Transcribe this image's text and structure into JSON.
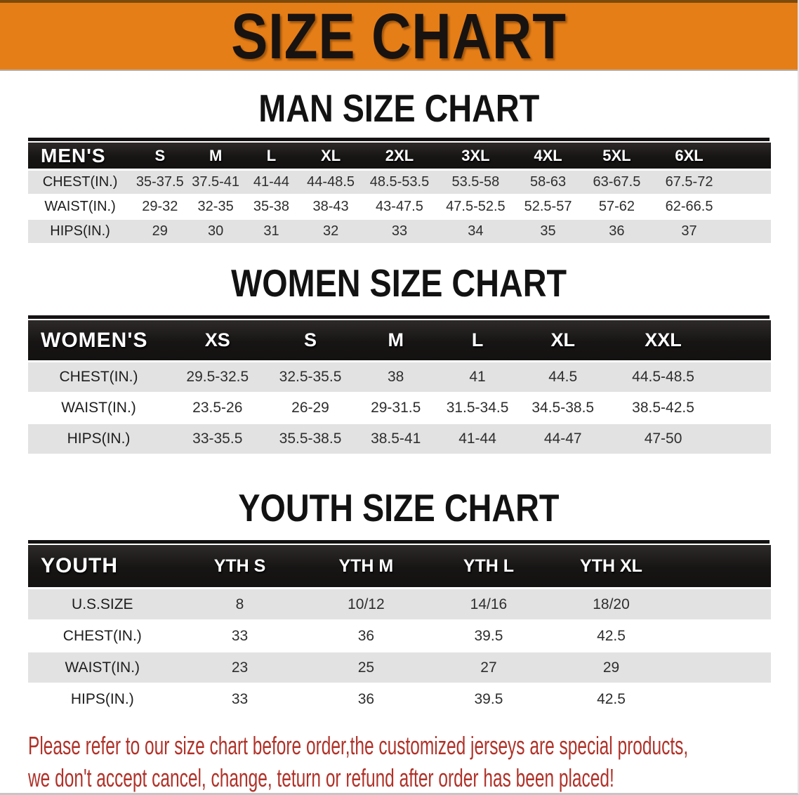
{
  "banner": {
    "title": "SIZE CHART",
    "bg_color": "#e67e17"
  },
  "sections": [
    {
      "heading": "MAN SIZE CHART",
      "table_title": "MEN'S",
      "columns": [
        "S",
        "M",
        "L",
        "XL",
        "2XL",
        "3XL",
        "4XL",
        "5XL",
        "6XL"
      ],
      "rows": [
        {
          "label": "CHEST(IN.)",
          "values": [
            "35-37.5",
            "37.5-41",
            "41-44",
            "44-48.5",
            "48.5-53.5",
            "53.5-58",
            "58-63",
            "63-67.5",
            "67.5-72"
          ]
        },
        {
          "label": "WAIST(IN.)",
          "values": [
            "29-32",
            "32-35",
            "35-38",
            "38-43",
            "43-47.5",
            "47.5-52.5",
            "52.5-57",
            "57-62",
            "62-66.5"
          ]
        },
        {
          "label": "HIPS(IN.)",
          "values": [
            "29",
            "30",
            "31",
            "32",
            "33",
            "34",
            "35",
            "36",
            "37"
          ]
        }
      ]
    },
    {
      "heading": "WOMEN SIZE CHART",
      "table_title": "WOMEN'S",
      "columns": [
        "XS",
        "S",
        "M",
        "L",
        "XL",
        "XXL"
      ],
      "rows": [
        {
          "label": "CHEST(IN.)",
          "values": [
            "29.5-32.5",
            "32.5-35.5",
            "38",
            "41",
            "44.5",
            "44.5-48.5"
          ]
        },
        {
          "label": "WAIST(IN.)",
          "values": [
            "23.5-26",
            "26-29",
            "29-31.5",
            "31.5-34.5",
            "34.5-38.5",
            "38.5-42.5"
          ]
        },
        {
          "label": "HIPS(IN.)",
          "values": [
            "33-35.5",
            "35.5-38.5",
            "38.5-41",
            "41-44",
            "44-47",
            "47-50"
          ]
        }
      ]
    },
    {
      "heading": "YOUTH SIZE CHART",
      "table_title": "YOUTH",
      "columns": [
        "YTH S",
        "YTH M",
        "YTH L",
        "YTH XL"
      ],
      "rows": [
        {
          "label": "U.S.SIZE",
          "values": [
            "8",
            "10/12",
            "14/16",
            "18/20"
          ]
        },
        {
          "label": "CHEST(IN.)",
          "values": [
            "33",
            "36",
            "39.5",
            "42.5"
          ]
        },
        {
          "label": "WAIST(IN.)",
          "values": [
            "23",
            "25",
            "27",
            "29"
          ]
        },
        {
          "label": "HIPS(IN.)",
          "values": [
            "33",
            "36",
            "39.5",
            "42.5"
          ]
        }
      ]
    }
  ],
  "footer_note": {
    "color": "#b03229",
    "lines": [
      "Please refer to our size chart before order,the customized jerseys are special products,",
      "we don't accept cancel, change, teturn or refund after order has been placed!"
    ]
  }
}
